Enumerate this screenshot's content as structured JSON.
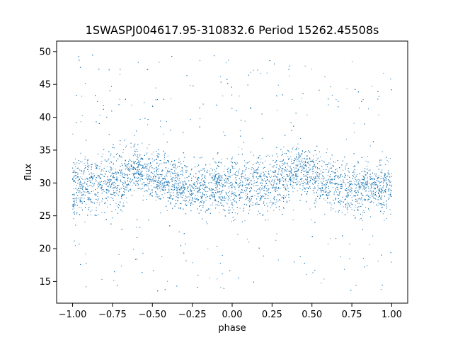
{
  "chart_data": {
    "type": "scatter",
    "title": "1SWASPJ004617.95-310832.6 Period 15262.45508s",
    "xlabel": "phase",
    "ylabel": "flux",
    "xlim": [
      -1.1,
      1.1
    ],
    "ylim": [
      11.7,
      51.6
    ],
    "x_ticks": [
      -1.0,
      -0.75,
      -0.5,
      -0.25,
      0.0,
      0.25,
      0.5,
      0.75,
      1.0
    ],
    "x_tick_labels": [
      "−1.00",
      "−0.75",
      "−0.50",
      "−0.25",
      "0.00",
      "0.25",
      "0.50",
      "0.75",
      "1.00"
    ],
    "y_ticks": [
      15,
      20,
      25,
      30,
      35,
      40,
      45,
      50
    ],
    "y_tick_labels": [
      "15",
      "20",
      "25",
      "30",
      "35",
      "40",
      "45",
      "50"
    ],
    "marker_color": "#1f77b4",
    "grid": false,
    "legend": "none",
    "series": [
      {
        "phase": [
          -1.0,
          -0.9,
          -0.8,
          -0.7,
          -0.6,
          -0.5,
          -0.4,
          -0.3,
          -0.2,
          -0.1,
          0.0,
          0.1,
          0.2,
          0.3,
          0.4,
          0.5,
          0.6,
          0.7,
          0.8,
          0.9,
          1.0
        ],
        "flux_upper": [
          35.5,
          36.0,
          36.5,
          37.0,
          37.5,
          37.0,
          36.0,
          35.0,
          34.5,
          35.0,
          35.5,
          36.0,
          36.5,
          37.0,
          37.5,
          37.0,
          36.0,
          35.0,
          34.5,
          35.0,
          35.5
        ],
        "flux_lower": [
          23.0,
          23.5,
          23.0,
          24.5,
          27.0,
          25.5,
          24.0,
          23.5,
          24.0,
          24.5,
          23.0,
          23.5,
          23.0,
          24.5,
          27.0,
          25.5,
          24.0,
          23.5,
          24.0,
          24.5,
          23.0
        ],
        "flux_min": 13.5,
        "flux_max": 49.5
      }
    ]
  }
}
